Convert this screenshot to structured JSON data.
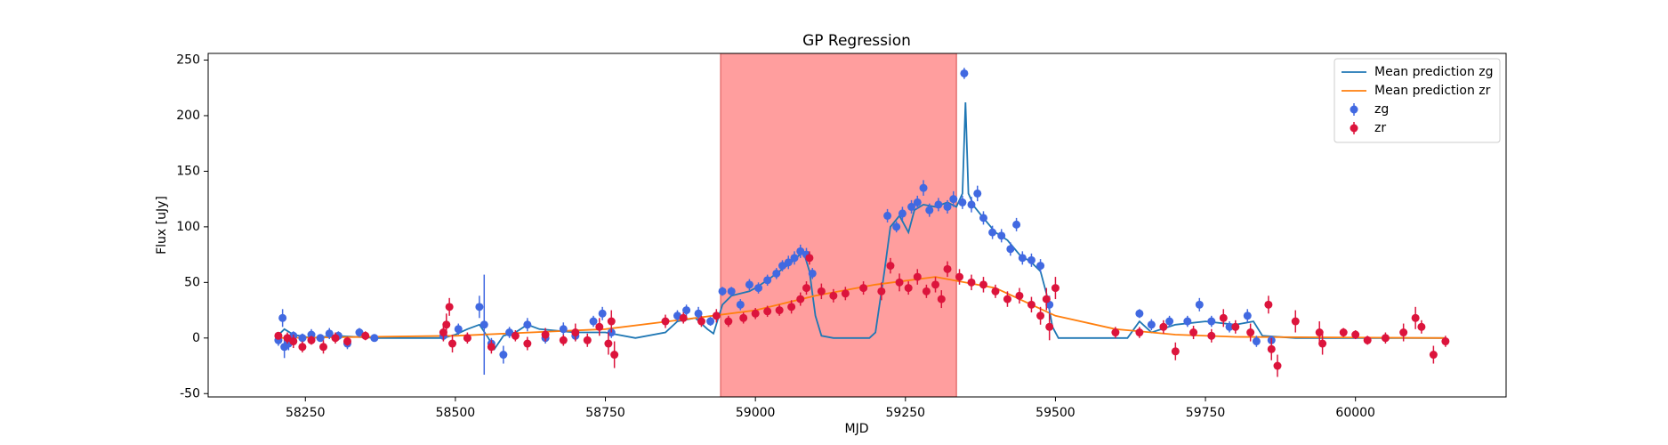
{
  "chart_data": {
    "type": "scatter",
    "title": "GP Regression",
    "x_label": "MJD",
    "y_label": "Flux [uJy]",
    "xlim": [
      58088,
      60251
    ],
    "ylim": [
      -53,
      256
    ],
    "xticks": [
      58250,
      58500,
      58750,
      59000,
      59250,
      59500,
      59750,
      60000
    ],
    "yticks": [
      -50,
      0,
      50,
      100,
      150,
      200,
      250
    ],
    "axvspan": [
      58942,
      59335
    ],
    "span_color": "#ff9e9e",
    "span_edge": "#e06060",
    "legend": "upper right",
    "series": [
      {
        "name": "Mean prediction zg",
        "style": "line",
        "color": "#1f77b4",
        "x": [
          58200,
          58215,
          58230,
          58260,
          58300,
          58370,
          58480,
          58500,
          58520,
          58540,
          58555,
          58565,
          58580,
          58600,
          58620,
          58640,
          58700,
          58750,
          58800,
          58850,
          58870,
          58900,
          58920,
          58930,
          58945,
          58960,
          58975,
          58990,
          59000,
          59020,
          59040,
          59060,
          59080,
          59090,
          59100,
          59110,
          59130,
          59190,
          59200,
          59215,
          59225,
          59240,
          59255,
          59265,
          59280,
          59300,
          59320,
          59335,
          59345,
          59350,
          59355,
          59365,
          59380,
          59400,
          59420,
          59440,
          59460,
          59475,
          59485,
          59495,
          59505,
          59620,
          59640,
          59660,
          59700,
          59750,
          59800,
          59830,
          59845,
          59900,
          60000,
          60150
        ],
        "values": [
          0,
          8,
          3,
          0,
          2,
          0,
          0,
          3,
          8,
          12,
          0,
          -10,
          2,
          5,
          12,
          8,
          5,
          5,
          0,
          5,
          15,
          18,
          8,
          4,
          30,
          38,
          40,
          42,
          45,
          52,
          60,
          68,
          78,
          60,
          20,
          2,
          0,
          0,
          5,
          60,
          100,
          110,
          95,
          115,
          120,
          118,
          122,
          118,
          130,
          212,
          130,
          118,
          108,
          95,
          88,
          75,
          68,
          60,
          40,
          10,
          0,
          0,
          15,
          5,
          12,
          15,
          12,
          15,
          2,
          0,
          0,
          0
        ]
      },
      {
        "name": "Mean prediction zr",
        "style": "line",
        "color": "#ff7f0e",
        "x": [
          58200,
          58500,
          58750,
          58900,
          59000,
          59100,
          59200,
          59300,
          59400,
          59500,
          59600,
          59700,
          59800,
          60150
        ],
        "values": [
          0,
          2,
          8,
          18,
          25,
          38,
          48,
          55,
          45,
          20,
          8,
          3,
          1,
          0
        ]
      },
      {
        "name": "zg",
        "style": "errorbar",
        "color": "#4169e1",
        "x": [
          58205,
          58212,
          58215,
          58222,
          58230,
          58245,
          58260,
          58275,
          58290,
          58305,
          58320,
          58340,
          58365,
          58480,
          58505,
          58540,
          58548,
          58560,
          58580,
          58590,
          58620,
          58650,
          58680,
          58700,
          58730,
          58745,
          58760,
          58870,
          58885,
          58905,
          58925,
          58945,
          58960,
          58975,
          58990,
          59005,
          59020,
          59035,
          59045,
          59055,
          59065,
          59075,
          59085,
          59095,
          59220,
          59235,
          59245,
          59260,
          59270,
          59280,
          59290,
          59305,
          59320,
          59330,
          59345,
          59348,
          59360,
          59370,
          59380,
          59395,
          59410,
          59425,
          59435,
          59445,
          59460,
          59475,
          59490,
          59640,
          59660,
          59690,
          59720,
          59740,
          59760,
          59790,
          59820,
          59835,
          59860
        ],
        "values": [
          -2,
          18,
          -8,
          -5,
          2,
          0,
          3,
          0,
          4,
          2,
          -5,
          5,
          0,
          2,
          8,
          28,
          12,
          -5,
          -15,
          5,
          12,
          0,
          8,
          2,
          15,
          22,
          5,
          20,
          25,
          22,
          15,
          42,
          42,
          30,
          48,
          45,
          52,
          58,
          65,
          68,
          72,
          78,
          75,
          58,
          110,
          100,
          112,
          118,
          122,
          135,
          115,
          120,
          118,
          125,
          122,
          238,
          120,
          130,
          108,
          95,
          92,
          80,
          102,
          72,
          70,
          65,
          30,
          22,
          12,
          15,
          15,
          30,
          15,
          10,
          20,
          -3,
          -2
        ],
        "errors": [
          5,
          8,
          10,
          6,
          4,
          4,
          5,
          3,
          5,
          4,
          5,
          4,
          3,
          4,
          5,
          10,
          45,
          5,
          8,
          5,
          6,
          5,
          6,
          5,
          5,
          6,
          5,
          5,
          5,
          6,
          4,
          4,
          4,
          5,
          5,
          5,
          5,
          5,
          5,
          6,
          6,
          6,
          6,
          5,
          6,
          5,
          6,
          6,
          6,
          7,
          6,
          6,
          6,
          7,
          6,
          5,
          7,
          7,
          6,
          6,
          6,
          6,
          6,
          6,
          6,
          6,
          8,
          4,
          5,
          5,
          5,
          6,
          5,
          5,
          6,
          5,
          4
        ]
      },
      {
        "name": "zr",
        "style": "errorbar",
        "color": "#dc143c",
        "x": [
          58205,
          58220,
          58230,
          58245,
          58260,
          58280,
          58300,
          58320,
          58350,
          58480,
          58485,
          58490,
          58495,
          58520,
          58560,
          58600,
          58620,
          58650,
          58680,
          58700,
          58720,
          58740,
          58755,
          58760,
          58765,
          58850,
          58880,
          58910,
          58935,
          58955,
          58980,
          59000,
          59020,
          59040,
          59060,
          59075,
          59085,
          59090,
          59110,
          59130,
          59150,
          59180,
          59210,
          59225,
          59240,
          59255,
          59270,
          59285,
          59300,
          59310,
          59320,
          59340,
          59360,
          59380,
          59400,
          59420,
          59440,
          59460,
          59475,
          59485,
          59490,
          59500,
          59600,
          59640,
          59680,
          59700,
          59730,
          59760,
          59780,
          59800,
          59825,
          59855,
          59860,
          59870,
          59900,
          59940,
          59945,
          59980,
          60000,
          60020,
          60050,
          60080,
          60100,
          60110,
          60130,
          60150
        ],
        "values": [
          2,
          0,
          -3,
          -8,
          -2,
          -8,
          0,
          -3,
          2,
          5,
          12,
          28,
          -5,
          0,
          -8,
          2,
          -5,
          3,
          -2,
          5,
          -2,
          10,
          -5,
          15,
          -15,
          15,
          18,
          15,
          20,
          15,
          18,
          22,
          24,
          25,
          28,
          35,
          45,
          72,
          42,
          38,
          40,
          45,
          42,
          65,
          50,
          45,
          55,
          42,
          48,
          35,
          62,
          55,
          50,
          48,
          42,
          35,
          38,
          30,
          20,
          35,
          10,
          45,
          5,
          5,
          10,
          -12,
          5,
          2,
          18,
          10,
          5,
          30,
          -10,
          -25,
          15,
          5,
          -5,
          5,
          3,
          -2,
          0,
          5,
          18,
          10,
          -15,
          -3
        ],
        "errors": [
          3,
          5,
          6,
          5,
          4,
          6,
          5,
          4,
          4,
          8,
          10,
          8,
          8,
          5,
          6,
          5,
          6,
          6,
          5,
          8,
          6,
          8,
          10,
          10,
          12,
          6,
          5,
          5,
          6,
          5,
          5,
          5,
          5,
          5,
          6,
          6,
          6,
          6,
          7,
          6,
          6,
          6,
          8,
          7,
          8,
          6,
          7,
          6,
          7,
          8,
          7,
          7,
          7,
          7,
          6,
          7,
          7,
          7,
          8,
          10,
          12,
          10,
          5,
          5,
          6,
          8,
          6,
          6,
          8,
          6,
          8,
          8,
          10,
          10,
          10,
          10,
          10,
          4,
          4,
          4,
          5,
          8,
          10,
          6,
          8,
          5
        ]
      }
    ]
  }
}
